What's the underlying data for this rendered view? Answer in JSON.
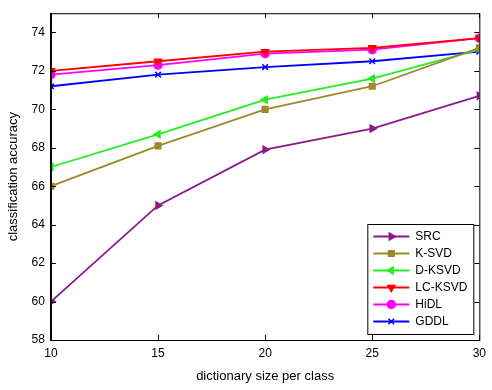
{
  "chart_data": {
    "type": "line",
    "x_label": "dictionary size per class",
    "y_label": "classification accuracy",
    "x": [
      10,
      15,
      20,
      25,
      30
    ],
    "xlim": [
      10,
      30
    ],
    "xticks": [
      10,
      15,
      20,
      25,
      30
    ],
    "ylim": [
      58,
      75
    ],
    "yticks": [
      58,
      60,
      62,
      64,
      66,
      68,
      70,
      72,
      74
    ],
    "grid": false,
    "legend": "lower right",
    "series": [
      {
        "name": "SRC",
        "color": "#8b1a89",
        "marker": "triangle-right",
        "values": [
          60,
          65,
          67.9,
          69,
          70.7
        ]
      },
      {
        "name": "K-SVD",
        "color": "#9c8a2a",
        "marker": "square",
        "values": [
          66,
          68.1,
          70,
          71.2,
          73.2
        ]
      },
      {
        "name": "D-KSVD",
        "color": "#22ee22",
        "marker": "triangle-left",
        "values": [
          67,
          68.7,
          70.5,
          71.6,
          73.1
        ]
      },
      {
        "name": "LC-KSVD",
        "color": "#ff0000",
        "marker": "triangle-down",
        "values": [
          72,
          72.5,
          73,
          73.2,
          73.7
        ]
      },
      {
        "name": "HiDL",
        "color": "#ff00ff",
        "marker": "circle",
        "values": [
          71.8,
          72.3,
          72.9,
          73.1,
          73.7
        ]
      },
      {
        "name": "GDDL",
        "color": "#0000ff",
        "marker": "x",
        "values": [
          71.2,
          71.8,
          72.2,
          72.5,
          73.0
        ]
      }
    ]
  }
}
